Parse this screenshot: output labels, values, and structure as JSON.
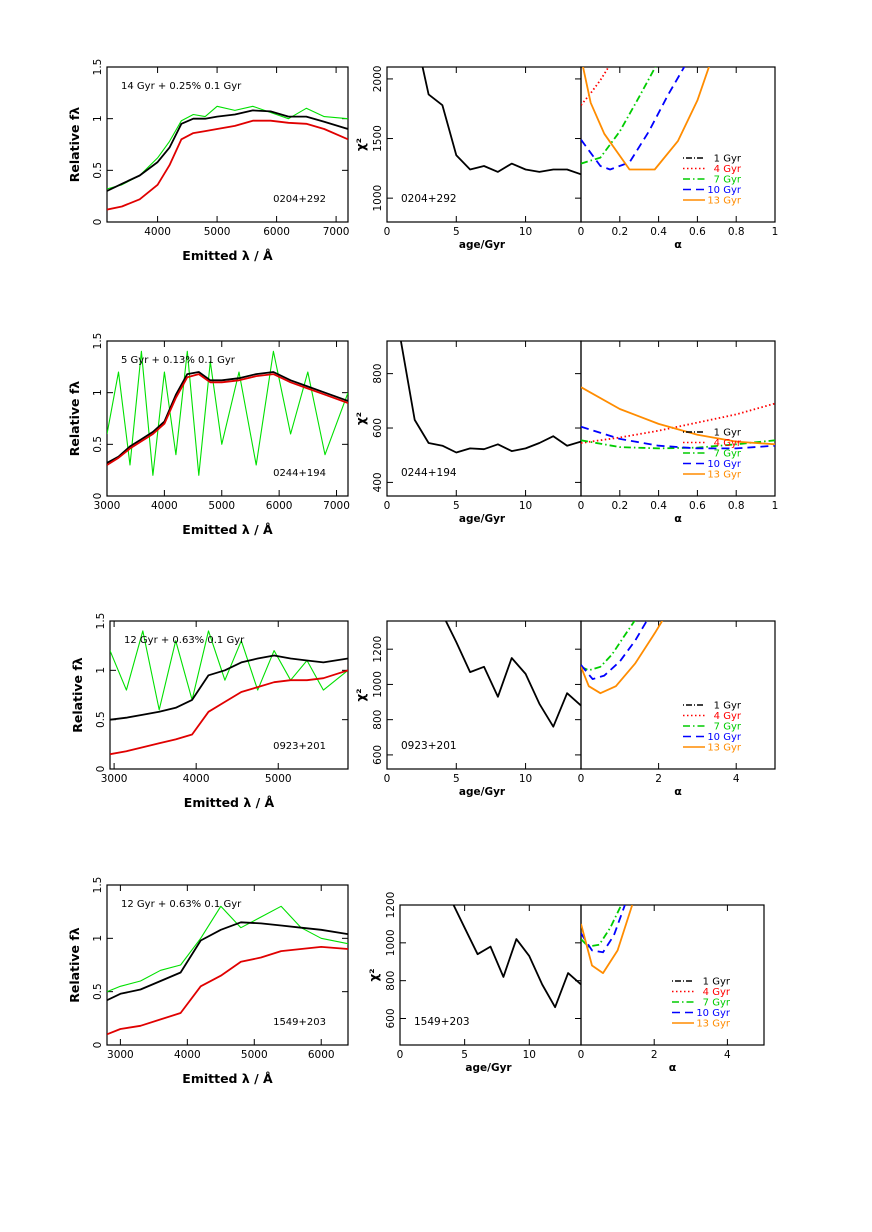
{
  "figure": {
    "legend_entries": [
      "1 Gyr",
      "4 Gyr",
      "7 Gyr",
      "10 Gyr",
      "13 Gyr"
    ],
    "colors": {
      "1 Gyr": "#000000",
      "4 Gyr": "#ff0000",
      "7 Gyr": "#00cc00",
      "10 Gyr": "#0000ff",
      "13 Gyr": "#ff8c00",
      "observed": "#00e000",
      "model": "#000000",
      "old": "#e00000"
    }
  },
  "chart_data": [
    {
      "type": "line",
      "panel": "spectrum",
      "annotation": "14 Gyr + 0.25% 0.1 Gyr",
      "id_label": "0204+292",
      "xlabel": "Emitted λ / Å",
      "ylabel": "Relative fλ",
      "xlim": [
        3150,
        7200
      ],
      "ylim": [
        0,
        1.5
      ],
      "xticks": [
        4000,
        5000,
        6000,
        7000
      ],
      "yticks": [
        0,
        0.5,
        1,
        1.5
      ],
      "series": [
        {
          "role": "observed",
          "color": "#00e000",
          "x": [
            3150,
            3400,
            3700,
            4000,
            4200,
            4400,
            4600,
            4800,
            5000,
            5300,
            5600,
            5900,
            6200,
            6500,
            6800,
            7200
          ],
          "y": [
            0.32,
            0.36,
            0.45,
            0.62,
            0.78,
            0.98,
            1.04,
            1.02,
            1.12,
            1.08,
            1.12,
            1.06,
            1.0,
            1.1,
            1.02,
            1.0
          ]
        },
        {
          "role": "model",
          "color": "#000000",
          "x": [
            3150,
            3400,
            3700,
            4000,
            4200,
            4400,
            4600,
            4800,
            5000,
            5300,
            5600,
            5900,
            6200,
            6500,
            6800,
            7200
          ],
          "y": [
            0.3,
            0.37,
            0.45,
            0.58,
            0.72,
            0.95,
            1.0,
            1.0,
            1.02,
            1.04,
            1.08,
            1.07,
            1.02,
            1.02,
            0.97,
            0.9
          ]
        },
        {
          "role": "old",
          "color": "#e00000",
          "x": [
            3150,
            3400,
            3700,
            4000,
            4200,
            4400,
            4600,
            4800,
            5000,
            5300,
            5600,
            5900,
            6200,
            6500,
            6800,
            7200
          ],
          "y": [
            0.12,
            0.15,
            0.22,
            0.36,
            0.55,
            0.8,
            0.86,
            0.88,
            0.9,
            0.93,
            0.98,
            0.98,
            0.96,
            0.95,
            0.9,
            0.8
          ]
        }
      ]
    },
    {
      "type": "line",
      "panel": "chi2_age",
      "id_label": "0204+292",
      "xlabel": "age/Gyr",
      "ylabel": "χ²",
      "xlim": [
        0,
        14
      ],
      "ylim": [
        800,
        2100
      ],
      "xticks": [
        0,
        5,
        10
      ],
      "yticks": [
        1000,
        1500,
        2000
      ],
      "series": [
        {
          "x": [
            2,
            3,
            4,
            5,
            6,
            7,
            8,
            9,
            10,
            11,
            12,
            13,
            14
          ],
          "y": [
            2400,
            1870,
            1780,
            1360,
            1240,
            1270,
            1220,
            1290,
            1240,
            1220,
            1240,
            1240,
            1200
          ]
        }
      ]
    },
    {
      "type": "line",
      "panel": "chi2_alpha",
      "xlabel": "α",
      "xlim": [
        0,
        1
      ],
      "ylim": [
        800,
        2100
      ],
      "xticks": [
        0,
        0.2,
        0.4,
        0.6,
        0.8,
        1
      ],
      "series": [
        {
          "name": "4 Gyr",
          "color": "#ff0000",
          "x": [
            0,
            0.05,
            0.1,
            0.15
          ],
          "y": [
            1780,
            1880,
            1990,
            2120
          ]
        },
        {
          "name": "7 Gyr",
          "color": "#00cc00",
          "x": [
            0,
            0.1,
            0.2,
            0.3,
            0.4
          ],
          "y": [
            1290,
            1340,
            1560,
            1850,
            2150
          ]
        },
        {
          "name": "10 Gyr",
          "color": "#0000ff",
          "x": [
            0,
            0.1,
            0.15,
            0.25,
            0.35,
            0.45,
            0.55
          ],
          "y": [
            1490,
            1270,
            1240,
            1300,
            1560,
            1870,
            2150
          ]
        },
        {
          "name": "13 Gyr",
          "color": "#ff8c00",
          "x": [
            0,
            0.05,
            0.12,
            0.25,
            0.38,
            0.5,
            0.6,
            0.67
          ],
          "y": [
            2180,
            1800,
            1540,
            1240,
            1240,
            1480,
            1820,
            2150
          ]
        }
      ]
    },
    {
      "type": "line",
      "panel": "spectrum",
      "annotation": "5 Gyr  + 0.13% 0.1 Gyr",
      "id_label": "0244+194",
      "xlabel": "Emitted λ / Å",
      "ylabel": "Relative fλ",
      "xlim": [
        3000,
        7200
      ],
      "ylim": [
        0,
        1.5
      ],
      "xticks": [
        3000,
        4000,
        5000,
        6000,
        7000
      ],
      "yticks": [
        0,
        0.5,
        1,
        1.5
      ],
      "series": [
        {
          "role": "observed",
          "color": "#00e000",
          "x": [
            3000,
            3200,
            3400,
            3600,
            3800,
            4000,
            4200,
            4400,
            4600,
            4800,
            5000,
            5300,
            5600,
            5900,
            6200,
            6500,
            6800,
            7200
          ],
          "y": [
            0.6,
            1.2,
            0.3,
            1.4,
            0.2,
            1.2,
            0.4,
            1.4,
            0.2,
            1.3,
            0.5,
            1.2,
            0.3,
            1.4,
            0.6,
            1.2,
            0.4,
            1.0
          ]
        },
        {
          "role": "model",
          "color": "#000000",
          "x": [
            3000,
            3200,
            3400,
            3600,
            3800,
            4000,
            4200,
            4400,
            4600,
            4800,
            5000,
            5300,
            5600,
            5900,
            6200,
            6500,
            6800,
            7200
          ],
          "y": [
            0.32,
            0.38,
            0.48,
            0.55,
            0.62,
            0.72,
            0.98,
            1.18,
            1.2,
            1.12,
            1.12,
            1.14,
            1.18,
            1.2,
            1.12,
            1.06,
            1.0,
            0.92
          ]
        },
        {
          "role": "old",
          "color": "#e00000",
          "x": [
            3000,
            3200,
            3400,
            3600,
            3800,
            4000,
            4200,
            4400,
            4600,
            4800,
            5000,
            5300,
            5600,
            5900,
            6200,
            6500,
            6800,
            7200
          ],
          "y": [
            0.3,
            0.37,
            0.46,
            0.53,
            0.6,
            0.7,
            0.95,
            1.15,
            1.18,
            1.1,
            1.1,
            1.12,
            1.16,
            1.18,
            1.1,
            1.04,
            0.98,
            0.9
          ]
        }
      ]
    },
    {
      "type": "line",
      "panel": "chi2_age",
      "id_label": "0244+194",
      "xlabel": "age/Gyr",
      "ylabel": "χ²",
      "xlim": [
        0,
        14
      ],
      "ylim": [
        350,
        920
      ],
      "xticks": [
        0,
        5,
        10
      ],
      "yticks": [
        400,
        600,
        800
      ],
      "series": [
        {
          "x": [
            1,
            2,
            3,
            4,
            5,
            6,
            7,
            8,
            9,
            10,
            11,
            12,
            13,
            14
          ],
          "y": [
            920,
            630,
            545,
            535,
            510,
            525,
            522,
            540,
            515,
            525,
            545,
            570,
            535,
            550
          ]
        }
      ]
    },
    {
      "type": "line",
      "panel": "chi2_alpha",
      "xlabel": "α",
      "xlim": [
        0,
        1
      ],
      "ylim": [
        350,
        920
      ],
      "xticks": [
        0,
        0.2,
        0.4,
        0.6,
        0.8,
        1
      ],
      "series": [
        {
          "name": "4 Gyr",
          "color": "#ff0000",
          "x": [
            0,
            0.2,
            0.4,
            0.6,
            0.8,
            1
          ],
          "y": [
            545,
            565,
            590,
            620,
            650,
            690
          ]
        },
        {
          "name": "7 Gyr",
          "color": "#00cc00",
          "x": [
            0,
            0.2,
            0.4,
            0.6,
            0.8,
            1
          ],
          "y": [
            555,
            530,
            525,
            528,
            540,
            555
          ]
        },
        {
          "name": "10 Gyr",
          "color": "#0000ff",
          "x": [
            0,
            0.2,
            0.4,
            0.6,
            0.8,
            1
          ],
          "y": [
            605,
            560,
            535,
            525,
            525,
            535
          ]
        },
        {
          "name": "13 Gyr",
          "color": "#ff8c00",
          "x": [
            0,
            0.2,
            0.4,
            0.6,
            0.8,
            1
          ],
          "y": [
            750,
            670,
            615,
            575,
            550,
            540
          ]
        }
      ]
    },
    {
      "type": "line",
      "panel": "spectrum",
      "annotation": "12 Gyr + 0.63% 0.1 Gyr",
      "id_label": "0923+201",
      "xlabel": "Emitted λ / Å",
      "ylabel": "Relative fλ",
      "xlim": [
        2950,
        5850
      ],
      "ylim": [
        0,
        1.5
      ],
      "xticks": [
        3000,
        4000,
        5000
      ],
      "yticks": [
        0,
        0.5,
        1,
        1.5
      ],
      "series": [
        {
          "role": "observed",
          "color": "#00e000",
          "x": [
            2950,
            3150,
            3350,
            3550,
            3750,
            3950,
            4150,
            4350,
            4550,
            4750,
            4950,
            5150,
            5350,
            5550,
            5850
          ],
          "y": [
            1.2,
            0.8,
            1.4,
            0.6,
            1.3,
            0.7,
            1.4,
            0.9,
            1.3,
            0.8,
            1.2,
            0.9,
            1.1,
            0.8,
            1.0
          ]
        },
        {
          "role": "model",
          "color": "#000000",
          "x": [
            2950,
            3150,
            3350,
            3550,
            3750,
            3950,
            4150,
            4350,
            4550,
            4750,
            4950,
            5150,
            5350,
            5550,
            5850
          ],
          "y": [
            0.5,
            0.52,
            0.55,
            0.58,
            0.62,
            0.7,
            0.95,
            1.0,
            1.08,
            1.12,
            1.15,
            1.12,
            1.1,
            1.08,
            1.12
          ]
        },
        {
          "role": "old",
          "color": "#e00000",
          "x": [
            2950,
            3150,
            3350,
            3550,
            3750,
            3950,
            4150,
            4350,
            4550,
            4750,
            4950,
            5150,
            5350,
            5550,
            5850
          ],
          "y": [
            0.15,
            0.18,
            0.22,
            0.26,
            0.3,
            0.35,
            0.58,
            0.68,
            0.78,
            0.83,
            0.88,
            0.9,
            0.9,
            0.92,
            1.0
          ]
        }
      ]
    },
    {
      "type": "line",
      "panel": "chi2_age",
      "id_label": "0923+201",
      "xlabel": "age/Gyr",
      "ylabel": "χ²",
      "xlim": [
        0,
        14
      ],
      "ylim": [
        520,
        1360
      ],
      "xticks": [
        0,
        5,
        10
      ],
      "yticks": [
        600,
        800,
        1000,
        1200
      ],
      "series": [
        {
          "x": [
            4,
            5,
            6,
            7,
            8,
            9,
            10,
            11,
            12,
            13,
            14
          ],
          "y": [
            1400,
            1240,
            1070,
            1100,
            930,
            1150,
            1060,
            890,
            760,
            950,
            880
          ]
        }
      ]
    },
    {
      "type": "line",
      "panel": "chi2_alpha",
      "xlabel": "α",
      "xlim": [
        0,
        5
      ],
      "ylim": [
        520,
        1360
      ],
      "xticks": [
        0,
        2,
        4
      ],
      "series": [
        {
          "name": "7 Gyr",
          "color": "#00cc00",
          "x": [
            0,
            0.2,
            0.5,
            0.8,
            1.1,
            1.5
          ],
          "y": [
            1100,
            1080,
            1100,
            1170,
            1270,
            1400
          ]
        },
        {
          "name": "10 Gyr",
          "color": "#0000ff",
          "x": [
            0,
            0.3,
            0.6,
            1.0,
            1.4,
            1.8
          ],
          "y": [
            1110,
            1030,
            1050,
            1130,
            1250,
            1400
          ]
        },
        {
          "name": "13 Gyr",
          "color": "#ff8c00",
          "x": [
            0,
            0.2,
            0.5,
            0.9,
            1.4,
            1.9,
            2.2
          ],
          "y": [
            1100,
            990,
            950,
            990,
            1120,
            1290,
            1400
          ]
        }
      ]
    },
    {
      "type": "line",
      "panel": "spectrum",
      "annotation": "12 Gyr + 0.63% 0.1 Gyr",
      "id_label": "1549+203",
      "xlabel": "Emitted λ / Å",
      "ylabel": "Relative fλ",
      "xlim": [
        2800,
        6400
      ],
      "ylim": [
        0,
        1.5
      ],
      "xticks": [
        3000,
        4000,
        5000,
        6000
      ],
      "yticks": [
        0,
        0.5,
        1,
        1.5
      ],
      "series": [
        {
          "role": "observed",
          "color": "#00e000",
          "x": [
            2800,
            3000,
            3300,
            3600,
            3900,
            4200,
            4500,
            4800,
            5100,
            5400,
            5700,
            6000,
            6400
          ],
          "y": [
            0.5,
            0.55,
            0.6,
            0.7,
            0.75,
            1.0,
            1.3,
            1.1,
            1.2,
            1.3,
            1.1,
            1.0,
            0.95
          ]
        },
        {
          "role": "model",
          "color": "#000000",
          "x": [
            2800,
            3000,
            3300,
            3600,
            3900,
            4200,
            4500,
            4800,
            5100,
            5400,
            5700,
            6000,
            6400
          ],
          "y": [
            0.42,
            0.48,
            0.52,
            0.6,
            0.68,
            0.98,
            1.08,
            1.15,
            1.14,
            1.12,
            1.1,
            1.08,
            1.04
          ]
        },
        {
          "role": "old",
          "color": "#e00000",
          "x": [
            2800,
            3000,
            3300,
            3600,
            3900,
            4200,
            4500,
            4800,
            5100,
            5400,
            5700,
            6000,
            6400
          ],
          "y": [
            0.1,
            0.15,
            0.18,
            0.24,
            0.3,
            0.55,
            0.65,
            0.78,
            0.82,
            0.88,
            0.9,
            0.92,
            0.9
          ]
        }
      ]
    },
    {
      "type": "line",
      "panel": "chi2_age",
      "id_label": "1549+203",
      "xlabel": "age/Gyr",
      "ylabel": "χ²",
      "xlim": [
        0,
        14
      ],
      "ylim": [
        460,
        1200
      ],
      "xticks": [
        0,
        5,
        10
      ],
      "yticks": [
        600,
        800,
        1000,
        1200
      ],
      "series": [
        {
          "x": [
            4,
            5,
            6,
            7,
            8,
            9,
            10,
            11,
            12,
            13,
            14
          ],
          "y": [
            1220,
            1080,
            940,
            980,
            820,
            1020,
            930,
            780,
            660,
            840,
            780
          ]
        }
      ]
    },
    {
      "type": "line",
      "panel": "chi2_alpha",
      "xlabel": "α",
      "xlim": [
        0,
        5
      ],
      "ylim": [
        460,
        1200
      ],
      "xticks": [
        0,
        2,
        4
      ],
      "series": [
        {
          "name": "7 Gyr",
          "color": "#00cc00",
          "x": [
            0,
            0.2,
            0.5,
            0.8,
            1.1
          ],
          "y": [
            1020,
            980,
            990,
            1080,
            1200
          ]
        },
        {
          "name": "10 Gyr",
          "color": "#0000ff",
          "x": [
            0,
            0.3,
            0.6,
            0.9,
            1.2
          ],
          "y": [
            1050,
            960,
            950,
            1040,
            1200
          ]
        },
        {
          "name": "13 Gyr",
          "color": "#ff8c00",
          "x": [
            0,
            0.3,
            0.6,
            1.0,
            1.4
          ],
          "y": [
            1100,
            880,
            840,
            960,
            1200
          ]
        }
      ]
    }
  ]
}
